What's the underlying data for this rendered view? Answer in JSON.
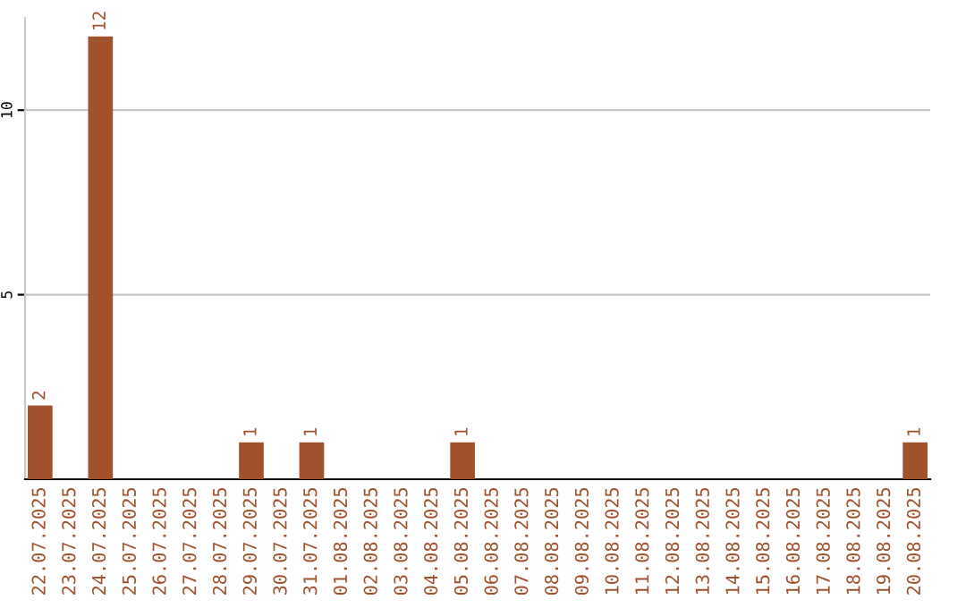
{
  "chart_data": {
    "type": "bar",
    "categories": [
      "22.07.2025",
      "23.07.2025",
      "24.07.2025",
      "25.07.2025",
      "26.07.2025",
      "27.07.2025",
      "28.07.2025",
      "29.07.2025",
      "30.07.2025",
      "31.07.2025",
      "01.08.2025",
      "02.08.2025",
      "03.08.2025",
      "04.08.2025",
      "05.08.2025",
      "06.08.2025",
      "07.08.2025",
      "08.08.2025",
      "09.08.2025",
      "10.08.2025",
      "11.08.2025",
      "12.08.2025",
      "13.08.2025",
      "14.08.2025",
      "15.08.2025",
      "16.08.2025",
      "17.08.2025",
      "18.08.2025",
      "19.08.2025",
      "20.08.2025"
    ],
    "values": [
      2,
      0,
      12,
      0,
      0,
      0,
      0,
      1,
      0,
      1,
      0,
      0,
      0,
      0,
      1,
      0,
      0,
      0,
      0,
      0,
      0,
      0,
      0,
      0,
      0,
      0,
      0,
      0,
      0,
      1
    ],
    "value_labels": [
      "2",
      null,
      "12",
      null,
      null,
      null,
      null,
      "1",
      null,
      "1",
      null,
      null,
      null,
      null,
      "1",
      null,
      null,
      null,
      null,
      null,
      null,
      null,
      null,
      null,
      null,
      null,
      null,
      null,
      null,
      "1"
    ],
    "color": "#a0522d",
    "ylim": [
      0,
      12.5
    ],
    "yticks": [
      5,
      10
    ],
    "grid": "y"
  }
}
